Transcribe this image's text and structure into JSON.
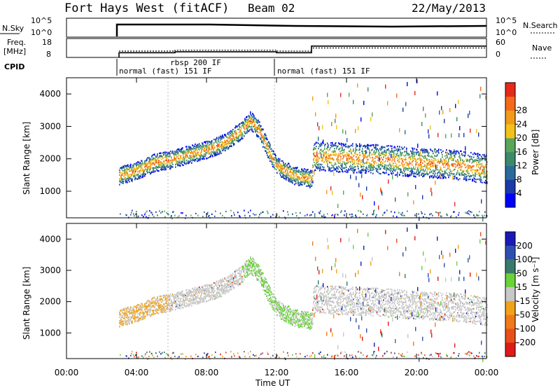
{
  "header": {
    "radar": "Fort Hays West (fitACF)",
    "beam": "Beam 02",
    "date": "22/May/2013"
  },
  "noise_panel": {
    "left_label": "N.Sky",
    "right_label": "N.Search",
    "left_ticks": [
      "10^5",
      "10^0"
    ],
    "right_ticks": [
      "10^5",
      "10^0"
    ]
  },
  "freq_panel": {
    "left_label_line1": "Freq.",
    "left_label_line2": "[MHz]",
    "right_label": "Nave",
    "left_ticks": [
      "18",
      "8"
    ],
    "right_ticks": [
      "60",
      "0"
    ]
  },
  "cpid_panel": {
    "label": "CPID",
    "segments": [
      "normal (fast) 151 IF",
      "rbsp 200 IF",
      "normal (fast) 151 IF"
    ]
  },
  "power_panel": {
    "ylabel": "Slant Range [km]",
    "yticks": [
      "1000",
      "2000",
      "3000",
      "4000"
    ],
    "colorbar_label": "Power [dB]",
    "colorbar_ticks": [
      "4",
      "8",
      "12",
      "16",
      "20",
      "24",
      "28"
    ]
  },
  "velocity_panel": {
    "ylabel": "Slant Range [km]",
    "yticks": [
      "1000",
      "2000",
      "3000",
      "4000"
    ],
    "colorbar_label": "Velocity [m s⁻¹]",
    "colorbar_ticks": [
      "200",
      "100",
      "50",
      "15",
      "-15",
      "-50",
      "-100",
      "-200"
    ]
  },
  "xaxis": {
    "label": "Time UT",
    "ticks": [
      "00:00",
      "04:00",
      "08:00",
      "12:00",
      "16:00",
      "20:00",
      "00:00"
    ]
  },
  "chart_data": {
    "type": "heatmap",
    "title": "Fort Hays West (fitACF) Beam 02 22/May/2013",
    "x_range_hours": [
      0,
      24
    ],
    "y_range_km": [
      180,
      4500
    ],
    "noise_steps": [
      {
        "start_hour": 3.0,
        "end_hour": 24.0,
        "nsky_level": "~10^3"
      }
    ],
    "frequency_steps": [
      {
        "start_hour": 3.0,
        "end_hour": 6.2,
        "mhz": 10.5
      },
      {
        "start_hour": 6.2,
        "end_hour": 12.0,
        "mhz": 11.0
      },
      {
        "start_hour": 12.0,
        "end_hour": 14.0,
        "mhz": 10.5
      },
      {
        "start_hour": 14.0,
        "end_hour": 24.0,
        "mhz": 14.0
      }
    ],
    "nave_steps": [
      {
        "start_hour": 3.0,
        "end_hour": 6.2,
        "value": 20
      },
      {
        "start_hour": 6.2,
        "end_hour": 12.0,
        "value": 23
      },
      {
        "start_hour": 12.0,
        "end_hour": 14.0,
        "value": 20
      },
      {
        "start_hour": 14.0,
        "end_hour": 24.0,
        "value": 30
      }
    ],
    "cpid_changes_hours": [
      3.0,
      6.2,
      12.0
    ],
    "scatter_band_km": {
      "hours": [
        3.0,
        4.0,
        5.0,
        6.0,
        7.0,
        8.0,
        9.0,
        10.0,
        10.5,
        11.0,
        11.5,
        12.0,
        13.0,
        14.0,
        14.1,
        16.0,
        18.0,
        20.0,
        22.0,
        24.0
      ],
      "center": [
        1500,
        1650,
        1900,
        2000,
        2150,
        2300,
        2500,
        2900,
        3200,
        2900,
        2300,
        1800,
        1500,
        1400,
        2100,
        2050,
        2000,
        1900,
        1850,
        1700
      ]
    },
    "power_range_db": [
      0,
      30
    ],
    "velocity_range_ms": [
      -200,
      200
    ]
  }
}
